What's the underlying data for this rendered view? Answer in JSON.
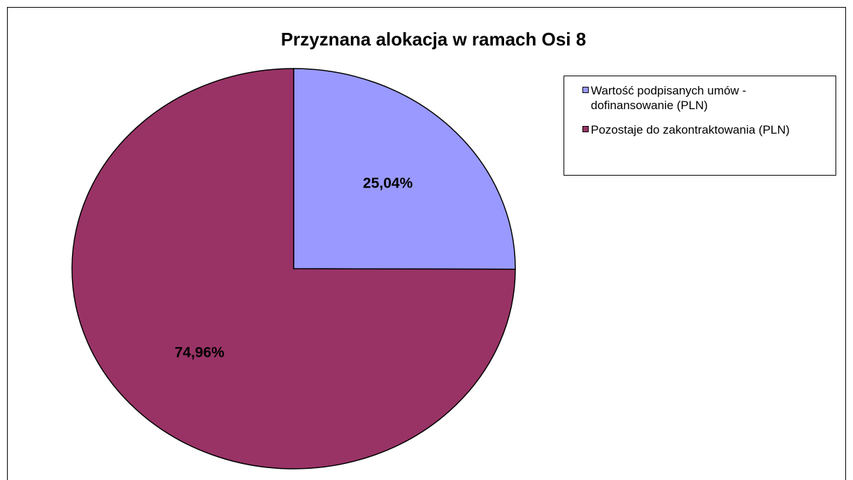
{
  "chart_data": {
    "type": "pie",
    "title": "Przyznana alokacja w ramach Osi 8",
    "categories": [
      "Wartość podpisanych umów - dofinansowanie (PLN)",
      "Pozostaje do zakontraktowania (PLN)"
    ],
    "values": [
      25.04,
      74.96
    ],
    "value_labels": [
      "25,04%",
      "74,96%"
    ],
    "colors": [
      "#9999ff",
      "#993366"
    ],
    "legend": "right"
  }
}
